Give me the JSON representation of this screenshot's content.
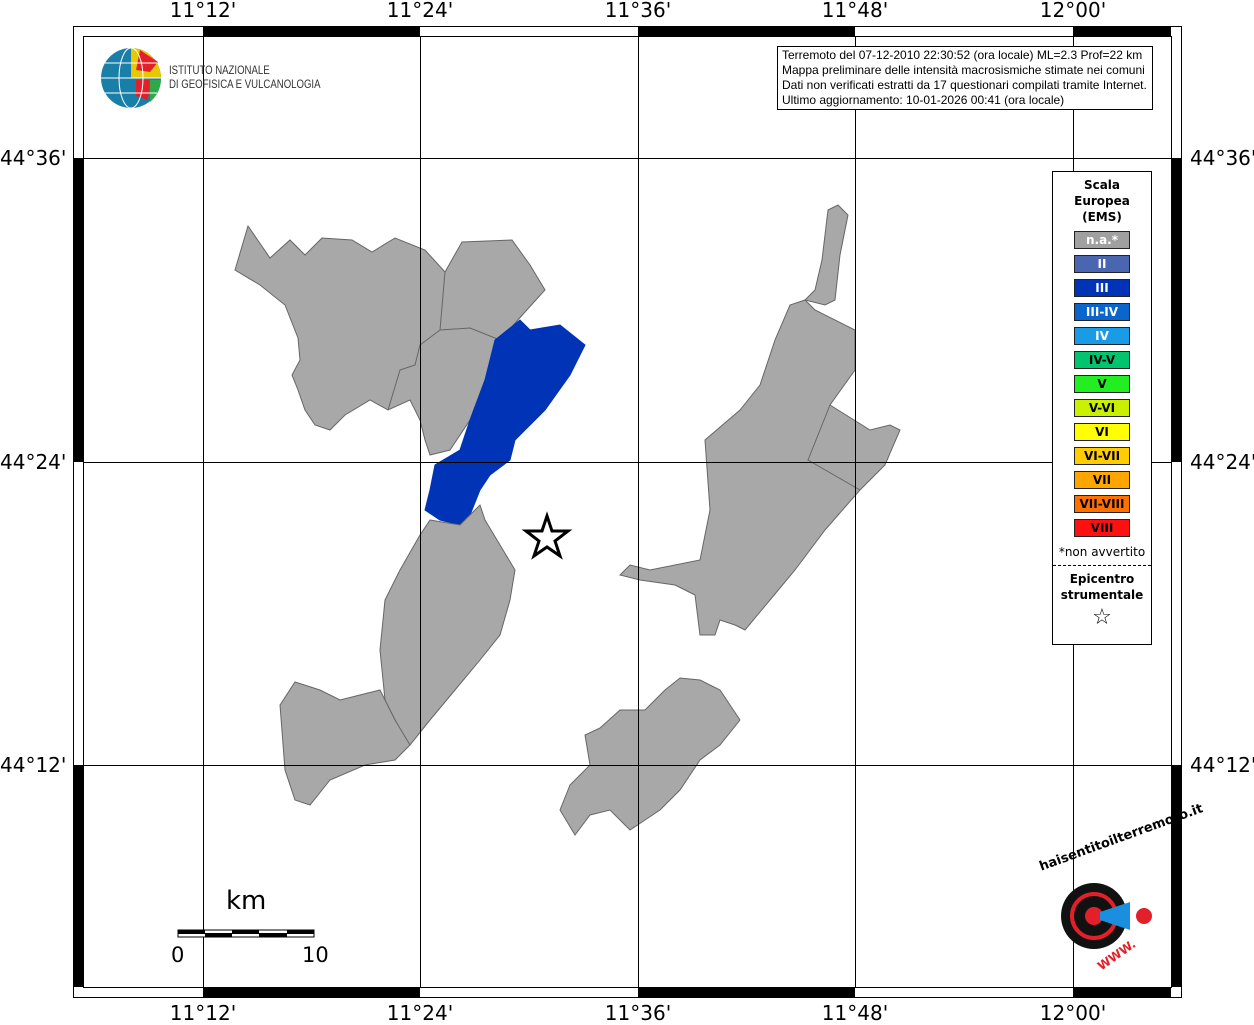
{
  "axes": {
    "lon_labels": [
      "11°12'",
      "11°24'",
      "11°36'",
      "11°48'",
      "12°00'"
    ],
    "lat_labels": [
      "44°36'",
      "44°24'",
      "44°12'"
    ]
  },
  "header_logo": {
    "line1": "ISTITUTO NAZIONALE",
    "line2": "DI GEOFISICA E VULCANOLOGIA"
  },
  "info": {
    "lines": [
      "Terremoto del 07-12-2010 22:30:52 (ora locale) ML=2.3 Prof=22 km",
      "Mappa preliminare delle intensità macrosismiche stimate nei comuni",
      "Dati non verificati estratti da 17 questionari compilati tramite Internet.",
      "Ultimo aggiornamento: 10-01-2026 00:41 (ora locale)"
    ]
  },
  "legend": {
    "title": [
      "Scala",
      "Europea",
      "(EMS)"
    ],
    "items": [
      {
        "label": "n.a.*",
        "color": "#a0a0a0",
        "text": "#fff"
      },
      {
        "label": "II",
        "color": "#4a66b0",
        "text": "#fff"
      },
      {
        "label": "III",
        "color": "#0033b5",
        "text": "#fff"
      },
      {
        "label": "III-IV",
        "color": "#0a66cc",
        "text": "#fff"
      },
      {
        "label": "IV",
        "color": "#1a9be6",
        "text": "#fff"
      },
      {
        "label": "IV-V",
        "color": "#00c46e",
        "text": "#000"
      },
      {
        "label": "V",
        "color": "#22ee22",
        "text": "#000"
      },
      {
        "label": "V-VI",
        "color": "#c8f000",
        "text": "#000"
      },
      {
        "label": "VI",
        "color": "#ffff00",
        "text": "#000"
      },
      {
        "label": "VI-VII",
        "color": "#ffcc00",
        "text": "#000"
      },
      {
        "label": "VII",
        "color": "#ffa500",
        "text": "#000"
      },
      {
        "label": "VII-VIII",
        "color": "#ff7000",
        "text": "#000"
      },
      {
        "label": "VIII",
        "color": "#ff1010",
        "text": "#000"
      }
    ],
    "note": "*non avvertito",
    "epicenter_title": [
      "Epicentro",
      "strumentale"
    ],
    "star": "☆"
  },
  "scale": {
    "unit": "km",
    "min": "0",
    "max": "10"
  },
  "footer_logo": {
    "text": "haisentitoilterremoto.it",
    "www": "WWW."
  },
  "map_colors": {
    "na": "#a8a8a8",
    "III": "#0033b5"
  }
}
